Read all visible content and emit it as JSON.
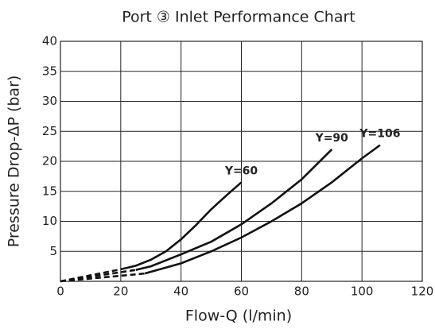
{
  "chart_data": {
    "type": "line",
    "title": "Port ③ Inlet  Performance Chart",
    "x_label": "Flow-Q (l/min)",
    "y_label": "Pressure Drop-ΔP (bar)",
    "xlim": [
      0,
      120
    ],
    "xticks": [
      0,
      20,
      40,
      60,
      80,
      100,
      120
    ],
    "ylim": [
      0,
      40
    ],
    "yticks": [
      5,
      10,
      15,
      20,
      25,
      30,
      35,
      40
    ],
    "grid": true,
    "series": [
      {
        "name": "Y=60",
        "color": "#111111",
        "x": [
          0,
          20,
          25,
          30,
          35,
          40,
          45,
          50,
          55,
          60
        ],
        "values": [
          0,
          2,
          2.6,
          3.6,
          5,
          7,
          9.4,
          12,
          14.3,
          16.5
        ]
      },
      {
        "name": "Y=90",
        "color": "#111111",
        "x": [
          0,
          25,
          30,
          40,
          50,
          60,
          70,
          80,
          90
        ],
        "values": [
          0,
          1.9,
          2.5,
          4.5,
          6.6,
          9.5,
          13,
          17,
          22
        ]
      },
      {
        "name": "Y=106",
        "color": "#111111",
        "x": [
          0,
          28,
          40,
          50,
          60,
          70,
          80,
          90,
          100,
          106
        ],
        "values": [
          0,
          1.3,
          3,
          5,
          7.3,
          10,
          13,
          16.5,
          20.5,
          22.7
        ]
      }
    ]
  }
}
